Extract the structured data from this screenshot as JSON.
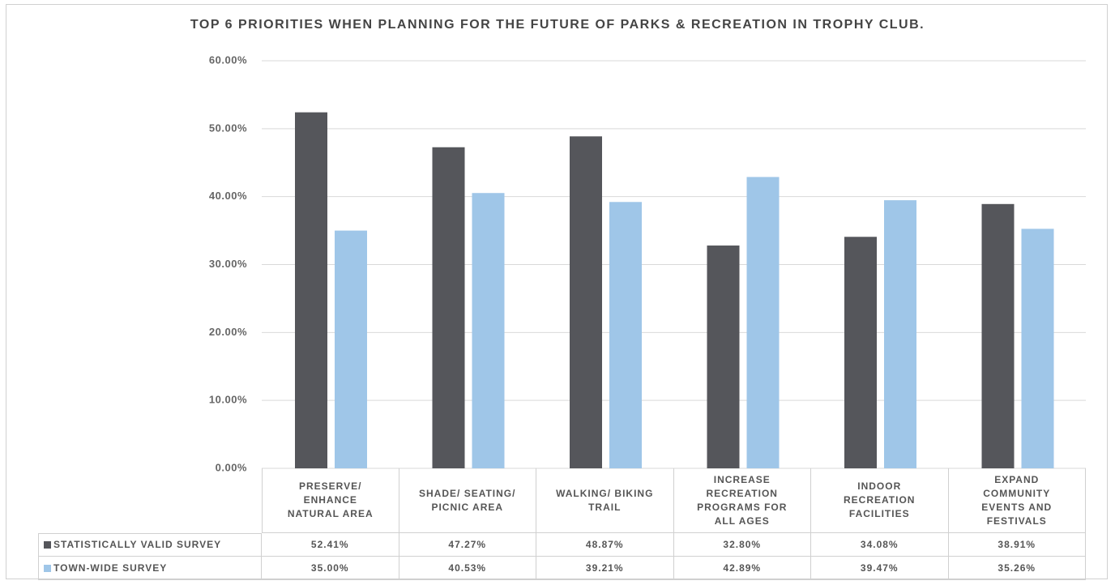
{
  "chart_data": {
    "type": "bar",
    "title": "TOP 6 PRIORITIES WHEN PLANNING FOR THE FUTURE OF PARKS & RECREATION IN TROPHY CLUB.",
    "categories": [
      "PRESERVE/ ENHANCE NATURAL AREA",
      "SHADE/ SEATING/ PICNIC AREA",
      "WALKING/ BIKING TRAIL",
      "INCREASE RECREATION PROGRAMS FOR ALL AGES",
      "INDOOR RECREATION FACILITIES",
      "EXPAND COMMUNITY EVENTS AND FESTIVALS"
    ],
    "series": [
      {
        "name": "STATISTICALLY VALID SURVEY",
        "color": "#55565b",
        "values": [
          52.41,
          47.27,
          48.87,
          32.8,
          34.08,
          38.91
        ],
        "value_labels": [
          "52.41%",
          "47.27%",
          "48.87%",
          "32.80%",
          "34.08%",
          "38.91%"
        ]
      },
      {
        "name": "TOWN-WIDE SURVEY",
        "color": "#9fc6e8",
        "values": [
          35.0,
          40.53,
          39.21,
          42.89,
          39.47,
          35.26
        ],
        "value_labels": [
          "35.00%",
          "40.53%",
          "39.21%",
          "42.89%",
          "39.47%",
          "35.26%"
        ]
      }
    ],
    "ylim": [
      0,
      60
    ],
    "yticks": [
      {
        "value": 0,
        "label": "0.00%"
      },
      {
        "value": 10,
        "label": "10.00%"
      },
      {
        "value": 20,
        "label": "20.00%"
      },
      {
        "value": 30,
        "label": "30.00%"
      },
      {
        "value": 40,
        "label": "40.00%"
      },
      {
        "value": 50,
        "label": "50.00%"
      },
      {
        "value": 60,
        "label": "60.00%"
      }
    ],
    "grid": true
  }
}
